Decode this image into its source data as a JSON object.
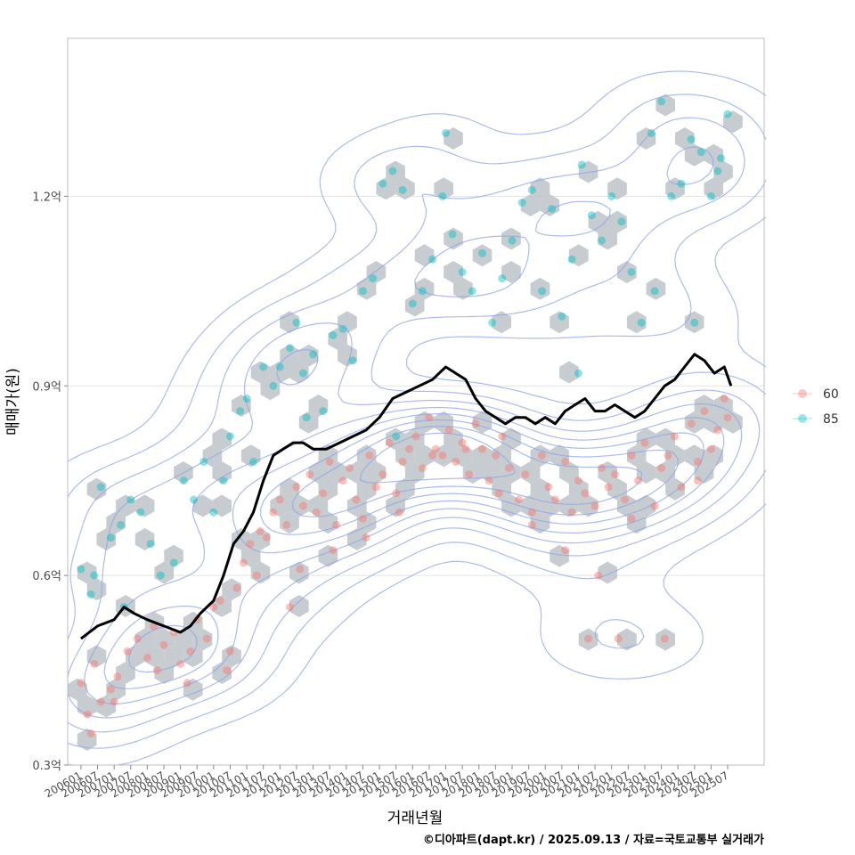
{
  "chart_data": {
    "type": "scatter",
    "title": "",
    "xlabel": "거래년월",
    "ylabel": "매매가(원)",
    "caption": "©디아파트(dapt.kr) / 2025.09.13 / 자료=국토교통부 실거래가",
    "ylim": [
      0.3,
      1.45
    ],
    "y_unit": "억",
    "y_ticks": [
      {
        "value": 0.3,
        "label": "0.3억"
      },
      {
        "value": 0.6,
        "label": "0.6억"
      },
      {
        "value": 0.9,
        "label": "0.9억"
      },
      {
        "value": 1.2,
        "label": "1.2억"
      }
    ],
    "x_range": [
      2005.6,
      2026.6
    ],
    "x_ticks": [
      "200601",
      "200607",
      "200701",
      "200707",
      "200801",
      "200807",
      "200901",
      "200907",
      "201001",
      "201007",
      "201101",
      "201107",
      "201201",
      "201207",
      "201301",
      "201307",
      "201401",
      "201407",
      "201501",
      "201507",
      "201601",
      "201607",
      "201701",
      "201707",
      "201801",
      "201807",
      "201901",
      "201907",
      "202001",
      "202007",
      "202101",
      "202107",
      "202201",
      "202207",
      "202301",
      "202307",
      "202401",
      "202407",
      "202501",
      "202507"
    ],
    "grid": true,
    "legend": {
      "position": "right",
      "entries": [
        {
          "name": "60",
          "color": "#F8766D"
        },
        {
          "name": "85",
          "color": "#00BFC4"
        }
      ]
    },
    "colors": {
      "panel": "#ffffff",
      "grid": "#e3e3e3",
      "hex": "#bdc3c8",
      "contour": "#8fa4e8",
      "trend": "#000000"
    },
    "trend_line": {
      "name": "moving-average",
      "x": [
        2006.0,
        2006.5,
        2007.0,
        2007.3,
        2007.6,
        2008.0,
        2008.5,
        2009.0,
        2009.3,
        2009.6,
        2010.0,
        2010.3,
        2010.6,
        2010.9,
        2011.2,
        2011.5,
        2011.8,
        2012.1,
        2012.4,
        2012.7,
        2013.0,
        2013.4,
        2013.8,
        2014.2,
        2014.6,
        2015.0,
        2015.4,
        2015.8,
        2016.2,
        2016.6,
        2017.0,
        2017.3,
        2017.6,
        2017.9,
        2018.2,
        2018.5,
        2018.8,
        2019.1,
        2019.4,
        2019.7,
        2020.0,
        2020.3,
        2020.6,
        2020.9,
        2021.2,
        2021.5,
        2021.8,
        2022.1,
        2022.4,
        2022.7,
        2023.0,
        2023.3,
        2023.6,
        2023.9,
        2024.2,
        2024.5,
        2024.8,
        2025.1,
        2025.4,
        2025.6
      ],
      "y": [
        0.5,
        0.52,
        0.53,
        0.55,
        0.54,
        0.53,
        0.52,
        0.51,
        0.52,
        0.54,
        0.56,
        0.6,
        0.65,
        0.67,
        0.7,
        0.75,
        0.79,
        0.8,
        0.81,
        0.81,
        0.8,
        0.8,
        0.81,
        0.82,
        0.83,
        0.85,
        0.88,
        0.89,
        0.9,
        0.91,
        0.93,
        0.92,
        0.91,
        0.88,
        0.86,
        0.85,
        0.84,
        0.85,
        0.85,
        0.84,
        0.85,
        0.84,
        0.86,
        0.87,
        0.88,
        0.86,
        0.86,
        0.87,
        0.86,
        0.85,
        0.86,
        0.88,
        0.9,
        0.91,
        0.93,
        0.95,
        0.94,
        0.92,
        0.93,
        0.9
      ]
    },
    "series": [
      {
        "name": "60",
        "x": [
          2006.0,
          2006.2,
          2006.4,
          2006.6,
          2006.9,
          2007.1,
          2007.4,
          2007.7,
          2008.0,
          2008.2,
          2008.5,
          2008.8,
          2009.0,
          2009.3,
          2009.5,
          2009.8,
          2010.0,
          2010.2,
          2010.5,
          2010.7,
          2010.9,
          2011.1,
          2011.3,
          2011.6,
          2011.8,
          2012.0,
          2012.2,
          2012.5,
          2012.7,
          2012.9,
          2013.1,
          2013.3,
          2013.5,
          2013.7,
          2013.9,
          2014.1,
          2014.3,
          2014.5,
          2014.7,
          2014.9,
          2015.1,
          2015.3,
          2015.5,
          2015.7,
          2015.9,
          2016.1,
          2016.3,
          2016.5,
          2016.7,
          2016.9,
          2017.1,
          2017.3,
          2017.5,
          2017.7,
          2017.9,
          2018.1,
          2018.3,
          2018.5,
          2018.7,
          2018.9,
          2019.2,
          2019.4,
          2019.6,
          2019.9,
          2020.1,
          2020.3,
          2020.6,
          2020.8,
          2021.0,
          2021.2,
          2021.5,
          2021.7,
          2021.9,
          2022.1,
          2022.4,
          2022.6,
          2022.8,
          2023.0,
          2023.3,
          2023.5,
          2023.7,
          2023.9,
          2024.1,
          2024.4,
          2024.6,
          2024.8,
          2025.0,
          2025.2,
          2025.4,
          2025.5,
          2006.3,
          2007.0,
          2008.3,
          2009.2,
          2010.4,
          2011.4,
          2012.6,
          2013.6,
          2014.6,
          2015.6,
          2016.6,
          2017.6,
          2018.6,
          2019.6,
          2020.6,
          2021.6,
          2022.6,
          2023.6,
          2024.6,
          2021.3,
          2022.2,
          2012.3
        ],
        "y": [
          0.43,
          0.38,
          0.46,
          0.4,
          0.42,
          0.44,
          0.48,
          0.5,
          0.47,
          0.52,
          0.49,
          0.51,
          0.46,
          0.48,
          0.53,
          0.5,
          0.55,
          0.56,
          0.48,
          0.58,
          0.62,
          0.65,
          0.6,
          0.66,
          0.7,
          0.72,
          0.68,
          0.74,
          0.71,
          0.76,
          0.7,
          0.73,
          0.78,
          0.68,
          0.75,
          0.77,
          0.72,
          0.69,
          0.79,
          0.74,
          0.76,
          0.81,
          0.73,
          0.78,
          0.8,
          0.82,
          0.77,
          0.85,
          0.8,
          0.79,
          0.83,
          0.78,
          0.81,
          0.76,
          0.84,
          0.8,
          0.75,
          0.79,
          0.82,
          0.77,
          0.72,
          0.76,
          0.7,
          0.79,
          0.74,
          0.72,
          0.78,
          0.7,
          0.75,
          0.73,
          0.71,
          0.77,
          0.74,
          0.76,
          0.72,
          0.79,
          0.75,
          0.81,
          0.71,
          0.77,
          0.79,
          0.82,
          0.74,
          0.84,
          0.78,
          0.86,
          0.8,
          0.83,
          0.88,
          0.85,
          0.35,
          0.4,
          0.45,
          0.43,
          0.45,
          0.67,
          0.61,
          0.64,
          0.66,
          0.7,
          0.79,
          0.8,
          0.73,
          0.68,
          0.64,
          0.6,
          0.69,
          0.5,
          0.75,
          0.5,
          0.5,
          0.55
        ]
      },
      {
        "name": "85",
        "x": [
          2006.0,
          2006.3,
          2006.6,
          2006.9,
          2007.2,
          2007.5,
          2007.8,
          2008.1,
          2008.4,
          2008.8,
          2009.1,
          2009.4,
          2009.7,
          2010.0,
          2010.3,
          2010.5,
          2010.8,
          2011.0,
          2011.2,
          2011.5,
          2011.8,
          2012.0,
          2012.3,
          2012.5,
          2012.7,
          2013.0,
          2013.3,
          2013.6,
          2013.9,
          2014.2,
          2014.5,
          2014.8,
          2015.1,
          2015.4,
          2015.7,
          2016.0,
          2016.3,
          2016.6,
          2016.9,
          2017.2,
          2017.5,
          2017.8,
          2018.1,
          2018.4,
          2018.7,
          2019.0,
          2019.3,
          2019.6,
          2019.9,
          2020.2,
          2020.5,
          2020.8,
          2021.1,
          2021.4,
          2021.7,
          2022.0,
          2022.3,
          2022.6,
          2022.9,
          2023.2,
          2023.5,
          2023.8,
          2024.1,
          2024.4,
          2024.7,
          2025.0,
          2025.3,
          2025.5,
          2006.4,
          2007.3,
          2012.8,
          2015.5,
          2017.0,
          2021.0,
          2023.3,
          2024.5,
          2025.2
        ],
        "y": [
          0.61,
          0.57,
          0.74,
          0.66,
          0.68,
          0.72,
          0.7,
          0.65,
          0.6,
          0.62,
          0.75,
          0.72,
          0.78,
          0.7,
          0.75,
          0.82,
          0.86,
          0.88,
          0.78,
          0.93,
          0.9,
          0.93,
          0.96,
          1.0,
          0.92,
          0.95,
          0.86,
          0.98,
          0.99,
          0.94,
          1.05,
          1.07,
          1.22,
          1.24,
          1.21,
          1.03,
          1.05,
          1.1,
          1.2,
          1.14,
          1.08,
          1.05,
          1.11,
          1.0,
          1.07,
          1.13,
          1.19,
          1.21,
          1.05,
          1.18,
          1.01,
          1.1,
          1.25,
          1.17,
          1.13,
          1.2,
          1.16,
          1.08,
          1.0,
          1.3,
          1.35,
          1.2,
          1.22,
          1.29,
          1.27,
          1.2,
          1.26,
          1.33,
          0.6,
          0.55,
          0.85,
          0.82,
          1.3,
          0.92,
          1.05,
          1.0,
          1.24
        ]
      }
    ]
  }
}
